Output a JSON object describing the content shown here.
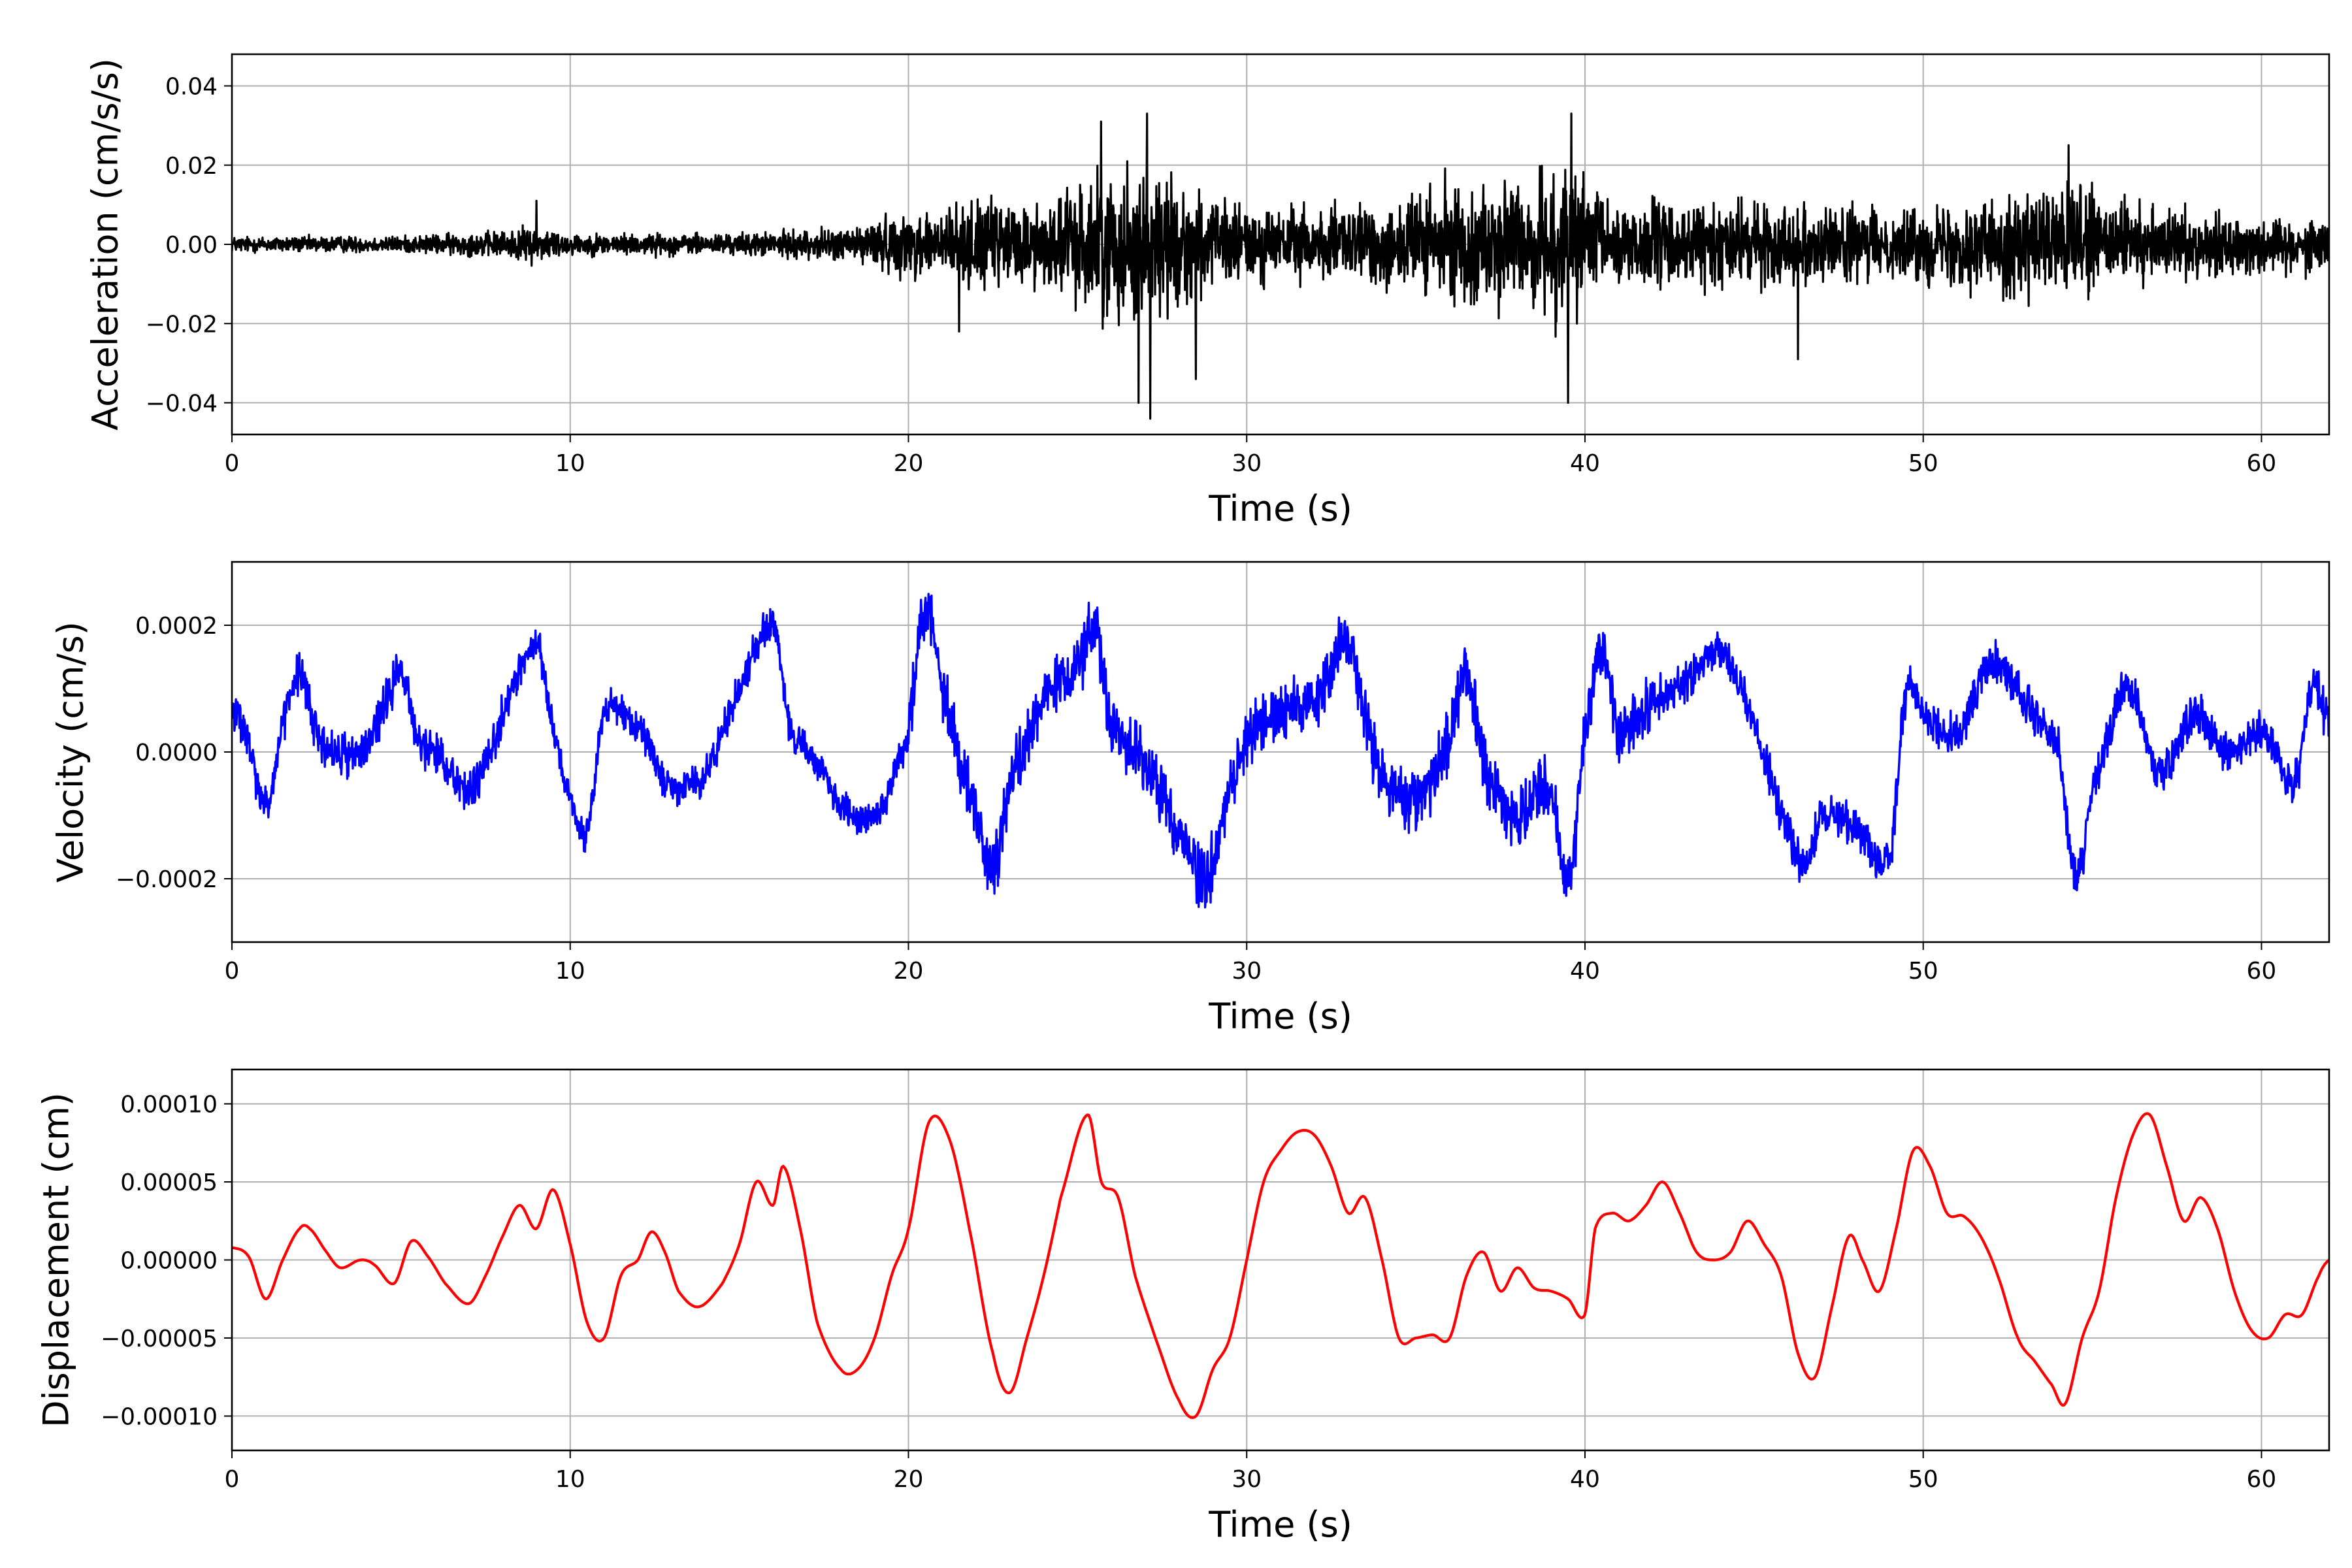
{
  "chart_data": [
    {
      "type": "line",
      "title": "",
      "xlabel": "Time (s)",
      "ylabel": "Acceleration (cm/s/s)",
      "xlim": [
        0,
        62
      ],
      "ylim": [
        -0.048,
        0.048
      ],
      "xticks": [
        0,
        10,
        20,
        30,
        40,
        50,
        60
      ],
      "xtick_labels": [
        "0",
        "10",
        "20",
        "30",
        "40",
        "50",
        "60"
      ],
      "yticks": [
        0.04,
        0.02,
        0.0,
        -0.02,
        -0.04
      ],
      "ytick_labels": [
        "0.04",
        "0.02",
        "0.00",
        "−0.02",
        "−0.04"
      ],
      "grid": true,
      "color": "#000000",
      "envelope": {
        "t": [
          0,
          5,
          8,
          9,
          10,
          12,
          15,
          18,
          20,
          22,
          24,
          25.5,
          27,
          28,
          29,
          31,
          33,
          35,
          37,
          39.5,
          41,
          44,
          47,
          49,
          52,
          54,
          56,
          58,
          60,
          62
        ],
        "amplitude": [
          0.003,
          0.003,
          0.005,
          0.007,
          0.004,
          0.004,
          0.004,
          0.006,
          0.012,
          0.016,
          0.016,
          0.026,
          0.03,
          0.024,
          0.016,
          0.014,
          0.014,
          0.02,
          0.022,
          0.027,
          0.017,
          0.015,
          0.015,
          0.012,
          0.018,
          0.022,
          0.016,
          0.012,
          0.01,
          0.01
        ]
      },
      "peaks": [
        {
          "t": 27.05,
          "v": 0.033
        },
        {
          "t": 27.15,
          "v": -0.044
        },
        {
          "t": 26.8,
          "v": -0.04
        },
        {
          "t": 39.6,
          "v": 0.033
        },
        {
          "t": 39.5,
          "v": -0.04
        },
        {
          "t": 25.7,
          "v": 0.031
        },
        {
          "t": 28.5,
          "v": -0.034
        },
        {
          "t": 46.3,
          "v": -0.029
        },
        {
          "t": 54.3,
          "v": 0.025
        },
        {
          "t": 9.0,
          "v": 0.011
        },
        {
          "t": 21.5,
          "v": -0.022
        }
      ]
    },
    {
      "type": "line",
      "title": "",
      "xlabel": "Time (s)",
      "ylabel": "Velocity (cm/s)",
      "xlim": [
        0,
        62
      ],
      "ylim": [
        -0.0003,
        0.0003
      ],
      "xticks": [
        0,
        10,
        20,
        30,
        40,
        50,
        60
      ],
      "xtick_labels": [
        "0",
        "10",
        "20",
        "30",
        "40",
        "50",
        "60"
      ],
      "yticks": [
        0.0002,
        0.0,
        -0.0002
      ],
      "ytick_labels": [
        "0.0002",
        "0.0000",
        "−0.0002"
      ],
      "grid": true,
      "color": "#0000ff",
      "t": [
        0,
        0.5,
        1,
        1.5,
        2,
        2.5,
        3,
        4,
        5,
        5.5,
        6,
        7,
        7.5,
        8,
        9,
        9.5,
        10,
        10.5,
        11,
        12,
        13,
        13.5,
        14,
        15,
        16,
        16.5,
        17,
        18,
        19,
        20,
        20.5,
        21,
        22,
        22.5,
        23,
        24,
        25,
        25.5,
        26,
        27,
        28,
        28.8,
        29.5,
        30,
        31,
        32,
        33,
        33.5,
        34,
        35,
        36,
        36.5,
        37,
        38,
        39,
        39.5,
        40,
        40.5,
        41,
        42,
        43,
        44,
        45,
        46,
        46.5,
        47,
        48,
        49,
        49.5,
        50,
        51,
        52,
        53,
        54,
        54.5,
        55,
        56,
        57,
        58,
        59,
        60,
        61,
        61.5,
        62
      ],
      "v": [
        7e-05,
        1e-05,
        -9e-05,
        4e-05,
        0.00012,
        3e-05,
        0.0,
        1e-05,
        0.00012,
        2e-05,
        0.0,
        -6e-05,
        -2e-05,
        6e-05,
        0.00017,
        4e-05,
        -8e-05,
        -0.00012,
        6e-05,
        4e-05,
        -6e-05,
        -5e-05,
        -3e-05,
        0.0001,
        0.0002,
        4e-05,
        0.0,
        -8e-05,
        -0.0001,
        3e-05,
        0.00022,
        0.0001,
        -0.0001,
        -0.00018,
        -5e-05,
        8e-05,
        0.00012,
        0.0002,
        5e-05,
        -2e-05,
        -0.00012,
        -0.0002,
        -6e-05,
        2e-05,
        6e-05,
        8e-05,
        0.00018,
        5e-05,
        -4e-05,
        -8e-05,
        2e-05,
        0.00012,
        -2e-05,
        -0.0001,
        -6e-05,
        -0.0002,
        2e-05,
        0.00016,
        4e-05,
        8e-05,
        0.00011,
        0.00016,
        4e-05,
        -0.00012,
        -0.00018,
        -0.0001,
        -0.00012,
        -0.00017,
        0.0001,
        6e-05,
        3e-05,
        0.00014,
        8e-05,
        0.0,
        -0.0002,
        -6e-05,
        0.0001,
        -3e-05,
        6e-05,
        0.0,
        3e-05,
        -5e-05,
        0.0001,
        4e-05
      ],
      "noise": 4e-05
    },
    {
      "type": "line",
      "title": "",
      "xlabel": "Time (s)",
      "ylabel": "Displacement (cm)",
      "xlim": [
        0,
        62
      ],
      "ylim": [
        -0.000122,
        0.000122
      ],
      "xticks": [
        0,
        10,
        20,
        30,
        40,
        50,
        60
      ],
      "xtick_labels": [
        "0",
        "10",
        "20",
        "30",
        "40",
        "50",
        "60"
      ],
      "yticks": [
        0.0001,
        5e-05,
        0.0,
        -5e-05,
        -0.0001
      ],
      "ytick_labels": [
        "0.00010",
        "0.00005",
        "0.00000",
        "−0.00005",
        "−0.00010"
      ],
      "grid": true,
      "color": "#ff0000",
      "t": [
        0,
        0.5,
        1.0,
        1.5,
        2.0,
        2.3,
        2.8,
        3.2,
        3.8,
        4.2,
        4.8,
        5.3,
        5.8,
        6.3,
        7.0,
        7.5,
        8.0,
        8.5,
        9.0,
        9.5,
        10.0,
        10.5,
        11.0,
        11.5,
        12.0,
        12.4,
        12.8,
        13.2,
        13.8,
        14.5,
        15.0,
        15.5,
        16.0,
        16.3,
        16.8,
        17.3,
        18.0,
        18.5,
        19.0,
        19.5,
        20.0,
        20.6,
        21.2,
        21.8,
        22.5,
        23.0,
        23.5,
        24.0,
        24.5,
        25.3,
        25.7,
        26.2,
        26.7,
        27.3,
        28.0,
        28.5,
        29.0,
        29.5,
        30.0,
        30.5,
        31.0,
        31.5,
        32.0,
        32.5,
        33.0,
        33.5,
        34.0,
        34.5,
        35.0,
        35.5,
        36.0,
        36.5,
        37.0,
        37.5,
        38.0,
        38.5,
        39.0,
        39.5,
        40.0,
        40.3,
        40.8,
        41.3,
        41.8,
        42.3,
        42.8,
        43.3,
        43.8,
        44.3,
        44.8,
        45.3,
        45.8,
        46.3,
        46.8,
        47.3,
        47.8,
        48.2,
        48.7,
        49.2,
        49.7,
        50.2,
        50.7,
        51.2,
        51.7,
        52.2,
        52.8,
        53.3,
        53.8,
        54.2,
        54.7,
        55.2,
        55.7,
        56.2,
        56.7,
        57.2,
        57.7,
        58.2,
        58.7,
        59.2,
        59.7,
        60.2,
        60.7,
        61.2,
        61.7,
        62.0
      ],
      "v": [
        8e-06,
        2e-06,
        -2.5e-05,
        0.0,
        2e-05,
        2e-05,
        5e-06,
        -5e-06,
        0.0,
        -3e-06,
        -1.5e-05,
        1.2e-05,
        2e-06,
        -1.5e-05,
        -2.8e-05,
        -1e-05,
        1.5e-05,
        3.5e-05,
        2e-05,
        4.5e-05,
        1e-05,
        -4e-05,
        -5e-05,
        -1e-05,
        0.0,
        1.8e-05,
        5e-06,
        -2e-05,
        -3e-05,
        -1.5e-05,
        1e-05,
        5e-05,
        3.5e-05,
        6e-05,
        2e-05,
        -4e-05,
        -7e-05,
        -7e-05,
        -5e-05,
        -1e-05,
        2e-05,
        8.8e-05,
        7.8e-05,
        2e-05,
        -6e-05,
        -8.5e-05,
        -5e-05,
        -1e-05,
        4e-05,
        9.3e-05,
        5e-05,
        4e-05,
        -1e-05,
        -5e-05,
        -9e-05,
        -0.0001,
        -7e-05,
        -5e-05,
        0.0,
        5e-05,
        7e-05,
        8.2e-05,
        8e-05,
        6e-05,
        3e-05,
        4e-05,
        0.0,
        -5e-05,
        -5e-05,
        -4.8e-05,
        -5e-05,
        -1e-05,
        5e-06,
        -2e-05,
        -5e-06,
        -1.8e-05,
        -2e-05,
        -2.5e-05,
        -3.5e-05,
        2e-05,
        3e-05,
        2.5e-05,
        3.5e-05,
        5e-05,
        3e-05,
        5e-06,
        0.0,
        5e-06,
        2.5e-05,
        1e-05,
        -1e-05,
        -6e-05,
        -7.5e-05,
        -3e-05,
        1.5e-05,
        0.0,
        -2e-05,
        2e-05,
        7e-05,
        6e-05,
        3e-05,
        2.8e-05,
        1.5e-05,
        -1e-05,
        -5e-05,
        -6.5e-05,
        -8e-05,
        -9.2e-05,
        -5e-05,
        -2e-05,
        4e-05,
        8e-05,
        9.3e-05,
        6e-05,
        2.5e-05,
        4e-05,
        2e-05,
        -2e-05,
        -4.5e-05,
        -5e-05,
        -3.5e-05,
        -3.5e-05,
        -1e-05,
        0.0
      ]
    }
  ]
}
